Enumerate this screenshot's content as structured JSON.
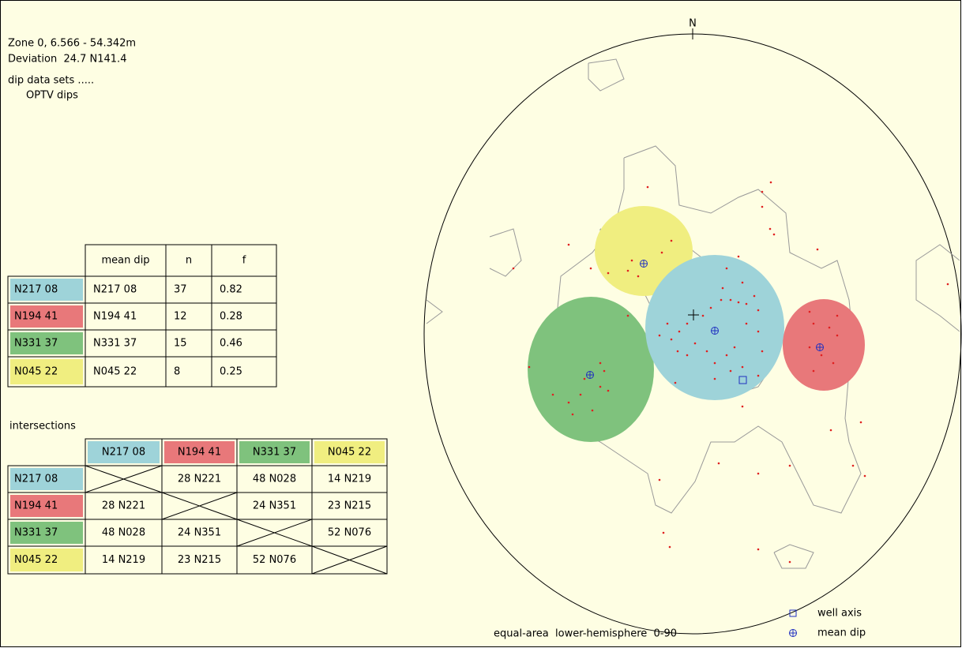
{
  "header": {
    "zone": "Zone 0, 6.566 - 54.342m",
    "deviation": "Deviation  24.7 N141.4",
    "data_sets_label": "dip data sets .....",
    "data_set": "OPTV dips"
  },
  "north": "N",
  "sets_table": {
    "columns": [
      "mean dip",
      "n",
      "f"
    ],
    "rows": [
      {
        "set": "N217 08",
        "color": "#9ed3d9",
        "mean_dip": "N217 08",
        "n": 37,
        "f": 0.82
      },
      {
        "set": "N194 41",
        "color": "#e8787a",
        "mean_dip": "N194 41",
        "n": 12,
        "f": 0.28
      },
      {
        "set": "N331 37",
        "color": "#7fc27d",
        "mean_dip": "N331 37",
        "n": 15,
        "f": 0.46
      },
      {
        "set": "N045 22",
        "color": "#f0ee80",
        "mean_dip": "N045 22",
        "n": 8,
        "f": 0.25
      }
    ]
  },
  "intersections": {
    "title": "intersections",
    "columns": [
      "N217 08",
      "N194 41",
      "N331 37",
      "N045 22"
    ],
    "rows": [
      {
        "set": "N217 08",
        "cells": [
          null,
          "28 N221",
          "48 N028",
          "14 N219"
        ]
      },
      {
        "set": "N194 41",
        "cells": [
          "28 N221",
          null,
          "24 N351",
          "23 N215"
        ]
      },
      {
        "set": "N331 37",
        "cells": [
          "48 N028",
          "24 N351",
          null,
          "52 N076"
        ]
      },
      {
        "set": "N045 22",
        "cells": [
          "14 N219",
          "23 N215",
          "52 N076",
          null
        ]
      }
    ]
  },
  "legend": {
    "well_axis": "well axis",
    "mean_dip": "mean dip"
  },
  "footer": "equal-area  lower-hemisphere  0-90"
}
